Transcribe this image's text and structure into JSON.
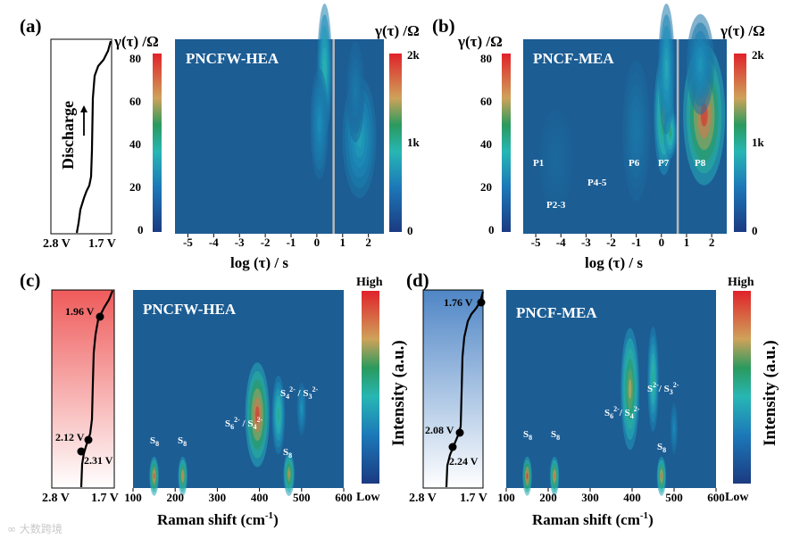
{
  "figure": {
    "watermark": "大数跨境",
    "panels": [
      {
        "id": "a",
        "panel_label": "(a)",
        "material": "PNCFW-HEA",
        "discharge_label": "Discharge",
        "voltage_start": "2.8 V",
        "voltage_end": "1.7 V",
        "colorbar_title": "γ(τ) /Ω",
        "colorbar_ticks": [
          "2k",
          "1k",
          "0"
        ],
        "y_axis_title": "γ(τ) /Ω",
        "y_ticks": [
          "80",
          "60",
          "40",
          "20",
          "0"
        ],
        "x_ticks": [
          "-5",
          "-4",
          "-3",
          "-2",
          "-1",
          "0",
          "1",
          "2"
        ],
        "x_label": "log (τ) / s",
        "peaks": []
      },
      {
        "id": "b",
        "panel_label": "(b)",
        "material": "PNCF-MEA",
        "colorbar_title": "γ(τ) /Ω",
        "colorbar_ticks": [
          "2k",
          "1k",
          "0"
        ],
        "y_axis_title": "γ(τ) /Ω",
        "y_ticks": [
          "80",
          "60",
          "40",
          "20",
          "0"
        ],
        "x_ticks": [
          "-5",
          "-4",
          "-3",
          "-2",
          "-1",
          "0",
          "1",
          "2"
        ],
        "x_label": "log (τ) / s",
        "peaks": [
          "P1",
          "P2-3",
          "P4-5",
          "P6",
          "P7",
          "P8"
        ]
      },
      {
        "id": "c",
        "panel_label": "(c)",
        "material": "PNCFW-HEA",
        "voltages": [
          "1.96 V",
          "2.12 V",
          "2.31 V"
        ],
        "voltage_start": "2.8 V",
        "voltage_end": "1.7 V",
        "colorbar_high": "High",
        "colorbar_low": "Low",
        "colorbar_title": "Intensity (a.u.)",
        "x_ticks": [
          "100",
          "200",
          "300",
          "400",
          "500",
          "600"
        ],
        "x_label": "Raman shift (cm",
        "x_label_sup": "-1",
        "x_label_end": ")",
        "species": [
          "S",
          "S",
          "S",
          "S",
          "S",
          "S"
        ]
      },
      {
        "id": "d",
        "panel_label": "(d)",
        "material": "PNCF-MEA",
        "voltages": [
          "1.76 V",
          "2.08 V",
          "2.24 V"
        ],
        "voltage_start": "2.8 V",
        "voltage_end": "1.7 V",
        "colorbar_high": "High",
        "colorbar_low": "Low",
        "colorbar_title": "Intensity (a.u.)",
        "x_ticks": [
          "100",
          "200",
          "300",
          "400",
          "500",
          "600"
        ],
        "x_label": "Raman shift (cm",
        "x_label_sup": "-1",
        "x_label_end": ")",
        "species": [
          "S",
          "S",
          "S",
          "S",
          "S",
          "S"
        ]
      }
    ]
  },
  "chart_data": [
    {
      "type": "heatmap",
      "title": "PNCFW-HEA DRT",
      "xlabel": "log (τ) / s",
      "ylabel": "γ(τ) /Ω",
      "xlim": [
        -5.5,
        2.6
      ],
      "ylim": [
        0,
        85
      ],
      "colorbar": {
        "min": 0,
        "max": 2000,
        "ticks": [
          0,
          1000,
          2000
        ]
      },
      "divider_x": 0.65,
      "blobs": [
        {
          "x": 0.3,
          "y": 72,
          "sx": 0.13,
          "sy": 13,
          "value": 0.48
        },
        {
          "x": 0.1,
          "y": 48,
          "sx": 0.16,
          "sy": 11,
          "value": 0.28
        },
        {
          "x": 1.65,
          "y": 42,
          "sx": 0.3,
          "sy": 12,
          "value": 0.36
        },
        {
          "x": 1.5,
          "y": 62,
          "sx": 0.16,
          "sy": 10,
          "value": 0.16
        }
      ]
    },
    {
      "type": "heatmap",
      "title": "PNCF-MEA DRT",
      "xlabel": "log (τ) / s",
      "ylabel": "γ(τ) /Ω",
      "xlim": [
        -5.5,
        2.6
      ],
      "ylim": [
        0,
        85
      ],
      "colorbar": {
        "min": 0,
        "max": 2000,
        "ticks": [
          0,
          1000,
          2000
        ]
      },
      "divider_x": 0.65,
      "blobs": [
        {
          "x": 0.1,
          "y": 52,
          "sx": 0.18,
          "sy": 12,
          "value": 0.7
        },
        {
          "x": 0.35,
          "y": 44,
          "sx": 0.12,
          "sy": 5,
          "value": 0.6
        },
        {
          "x": 0.2,
          "y": 72,
          "sx": 0.15,
          "sy": 13,
          "value": 0.4
        },
        {
          "x": 1.7,
          "y": 52,
          "sx": 0.38,
          "sy": 14,
          "value": 1.0
        },
        {
          "x": 1.55,
          "y": 74,
          "sx": 0.25,
          "sy": 10,
          "value": 0.3
        },
        {
          "x": -1.0,
          "y": 45,
          "sx": 0.25,
          "sy": 14,
          "value": 0.15
        },
        {
          "x": -4.2,
          "y": 32,
          "sx": 0.3,
          "sy": 10,
          "value": 0.07
        }
      ]
    },
    {
      "type": "heatmap",
      "title": "PNCFW-HEA in-situ Raman",
      "xlabel": "Raman shift (cm-1)",
      "ylabel": "Intensity (a.u.)",
      "xlim": [
        100,
        600
      ],
      "ylim": [
        0,
        1
      ],
      "colorbar": {
        "min": "Low",
        "max": "High"
      },
      "blobs": [
        {
          "x": 150,
          "y": 0.06,
          "sx": 5,
          "sy": 0.045,
          "value": 0.95
        },
        {
          "x": 218,
          "y": 0.06,
          "sx": 5,
          "sy": 0.045,
          "value": 0.88
        },
        {
          "x": 470,
          "y": 0.07,
          "sx": 6,
          "sy": 0.05,
          "value": 0.85
        },
        {
          "x": 395,
          "y": 0.37,
          "sx": 13,
          "sy": 0.12,
          "value": 1.0
        },
        {
          "x": 445,
          "y": 0.37,
          "sx": 7,
          "sy": 0.09,
          "value": 0.55
        },
        {
          "x": 500,
          "y": 0.4,
          "sx": 5,
          "sy": 0.06,
          "value": 0.3
        }
      ]
    },
    {
      "type": "heatmap",
      "title": "PNCF-MEA in-situ Raman",
      "xlabel": "Raman shift (cm-1)",
      "ylabel": "Intensity (a.u.)",
      "xlim": [
        100,
        600
      ],
      "ylim": [
        0,
        1
      ],
      "colorbar": {
        "min": "Low",
        "max": "High"
      },
      "blobs": [
        {
          "x": 150,
          "y": 0.06,
          "sx": 5,
          "sy": 0.045,
          "value": 1.0
        },
        {
          "x": 215,
          "y": 0.06,
          "sx": 5,
          "sy": 0.045,
          "value": 0.9
        },
        {
          "x": 470,
          "y": 0.06,
          "sx": 5,
          "sy": 0.045,
          "value": 0.9
        },
        {
          "x": 395,
          "y": 0.5,
          "sx": 10,
          "sy": 0.14,
          "value": 0.8
        },
        {
          "x": 450,
          "y": 0.55,
          "sx": 6,
          "sy": 0.12,
          "value": 0.55
        },
        {
          "x": 500,
          "y": 0.3,
          "sx": 4,
          "sy": 0.06,
          "value": 0.25
        }
      ]
    }
  ]
}
